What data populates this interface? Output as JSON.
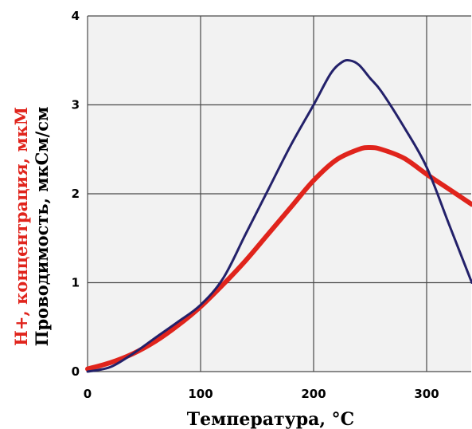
{
  "chart_data": {
    "type": "line",
    "xlabel": "Температура, °C",
    "ylabel_primary": "H+, концентрация, мкМ",
    "ylabel_secondary": "Проводимость, мкСм/см",
    "xlim": [
      0,
      340
    ],
    "ylim": [
      0,
      4
    ],
    "x_ticks": [
      0,
      100,
      200,
      300
    ],
    "y_ticks": [
      0,
      1,
      2,
      3,
      4
    ],
    "grid": true,
    "colors": {
      "plot_bg": "#f2f2f2",
      "grid": "#4a4a4a",
      "conductivity": "#23216a",
      "h_concentration": "#e0241c"
    },
    "series": [
      {
        "key": "conductivity",
        "x": [
          0,
          20,
          40,
          60,
          80,
          100,
          120,
          140,
          160,
          180,
          200,
          215,
          225,
          232,
          240,
          250,
          260,
          280,
          300,
          320,
          340
        ],
        "y": [
          0.0,
          0.05,
          0.2,
          0.38,
          0.56,
          0.75,
          1.05,
          1.55,
          2.05,
          2.55,
          3.0,
          3.35,
          3.48,
          3.5,
          3.45,
          3.3,
          3.15,
          2.75,
          2.3,
          1.65,
          1.0
        ]
      },
      {
        "key": "h_concentration",
        "x": [
          0,
          20,
          40,
          60,
          80,
          100,
          120,
          140,
          160,
          180,
          200,
          220,
          240,
          250,
          260,
          280,
          300,
          320,
          340
        ],
        "y": [
          0.03,
          0.1,
          0.2,
          0.34,
          0.52,
          0.73,
          0.98,
          1.25,
          1.55,
          1.85,
          2.15,
          2.38,
          2.5,
          2.52,
          2.5,
          2.4,
          2.22,
          2.05,
          1.88
        ]
      }
    ]
  }
}
